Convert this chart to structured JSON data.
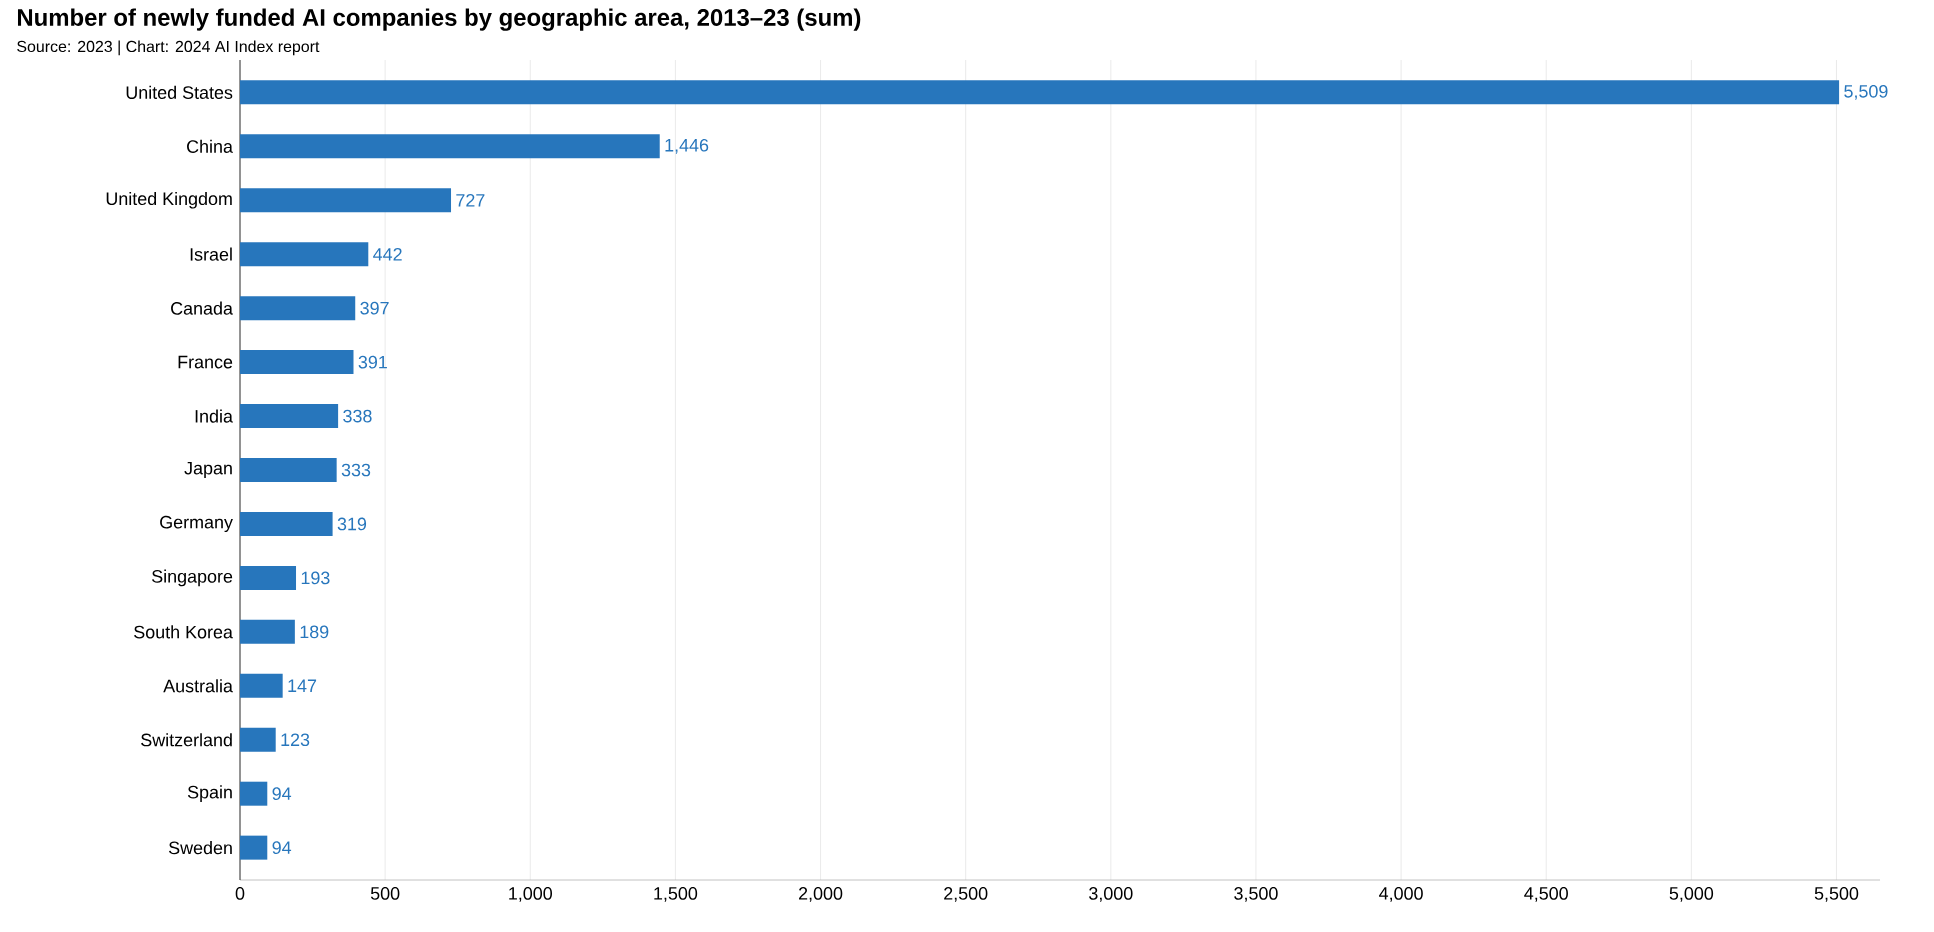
{
  "chart_data": {
    "type": "bar",
    "orientation": "horizontal",
    "title": "Number of newly funded AI companies by geographic area, 2013–23 (sum)",
    "subtitle": "Source: 2023 | Chart: 2024 AI Index report",
    "categories": [
      "United States",
      "China",
      "United Kingdom",
      "Israel",
      "Canada",
      "France",
      "India",
      "Japan",
      "Germany",
      "Singapore",
      "South Korea",
      "Australia",
      "Switzerland",
      "Spain",
      "Sweden"
    ],
    "values": [
      5509,
      1446,
      727,
      442,
      397,
      391,
      338,
      333,
      319,
      193,
      189,
      147,
      123,
      94,
      94
    ],
    "value_labels": [
      "5,509",
      "1,446",
      "727",
      "442",
      "397",
      "391",
      "338",
      "333",
      "319",
      "193",
      "189",
      "147",
      "123",
      "94",
      "94"
    ],
    "color": "#2776bc",
    "xlim": [
      0,
      5650
    ],
    "xticks": [
      0,
      500,
      {
        "value": 1000,
        "label": "1,000"
      },
      {
        "value": 1500,
        "label": "1,500"
      },
      {
        "value": 2000,
        "label": "2,000"
      },
      {
        "value": 2500,
        "label": "2,500"
      },
      {
        "value": 3000,
        "label": "3,000"
      },
      {
        "value": 3500,
        "label": "3,500"
      },
      {
        "value": 4000,
        "label": "4,000"
      },
      {
        "value": 4500,
        "label": "4,500"
      },
      {
        "value": 5000,
        "label": "5,000"
      },
      {
        "value": 5500,
        "label": "5,500"
      }
    ],
    "grid": "x"
  }
}
